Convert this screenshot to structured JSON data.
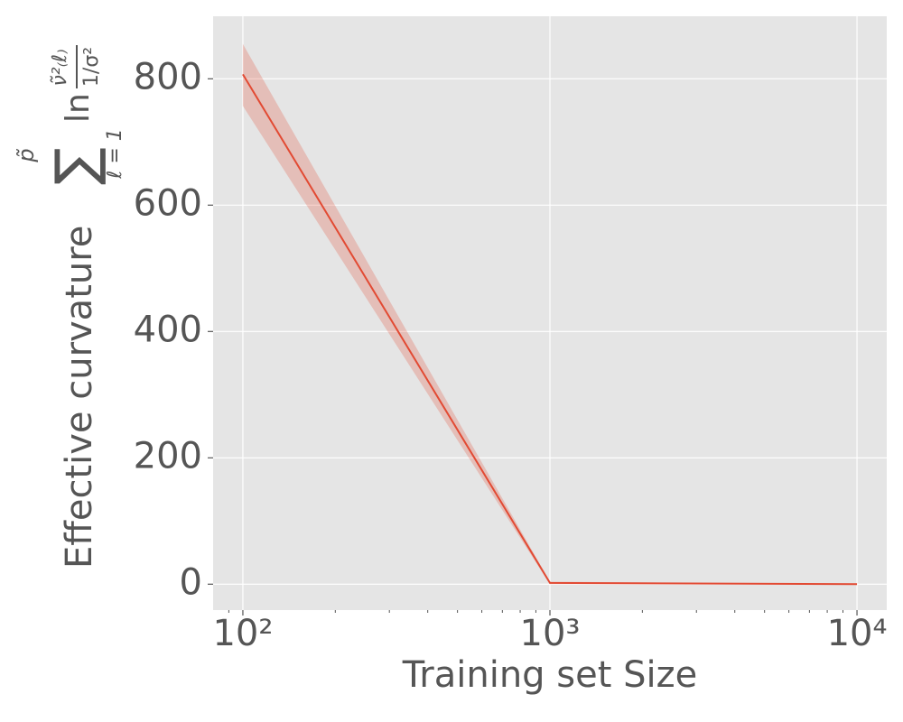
{
  "chart_data": {
    "type": "line",
    "xlabel": "Training set Size",
    "ylabel": "Effective curvature",
    "ylabel_math": {
      "sum": "∑",
      "sum_lower": "ℓ = 1",
      "sum_upper": "p̃",
      "log": "ln",
      "numerator": "ν̃²₍ℓ₎",
      "denominator": "1/σ²"
    },
    "x": [
      100,
      1000,
      10000
    ],
    "series": [
      {
        "name": "Effective curvature",
        "color": "#e24a33",
        "values": [
          807,
          2,
          0
        ],
        "band_lower": [
          757,
          0,
          0
        ],
        "band_upper": [
          855,
          4,
          0
        ]
      }
    ],
    "xscale": "log",
    "xlim": [
      80,
      12500
    ],
    "xticks": [
      {
        "value": 100,
        "label": "10²"
      },
      {
        "value": 1000,
        "label": "10³"
      },
      {
        "value": 10000,
        "label": "10⁴"
      }
    ],
    "xminorticks": [
      90,
      200,
      300,
      400,
      500,
      600,
      700,
      800,
      900,
      2000,
      3000,
      4000,
      5000,
      6000,
      7000,
      8000,
      9000
    ],
    "ylim": [
      -41,
      899
    ],
    "yticks": [
      0,
      200,
      400,
      600,
      800
    ],
    "grid": true
  }
}
